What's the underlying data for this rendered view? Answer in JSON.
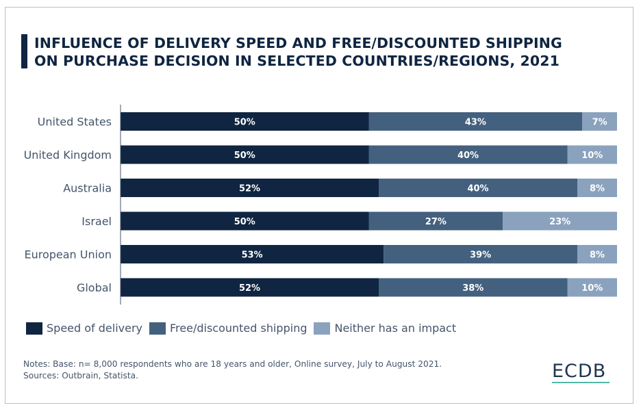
{
  "title_line1": "INFLUENCE OF DELIVERY SPEED AND FREE/DISCOUNTED SHIPPING",
  "title_line2": "ON PURCHASE DECISION IN SELECTED COUNTRIES/REGIONS, 2021",
  "chart_data": {
    "type": "bar",
    "orientation": "horizontal",
    "stacked": true,
    "title": "INFLUENCE OF DELIVERY SPEED AND FREE/DISCOUNTED SHIPPING ON PURCHASE DECISION IN SELECTED COUNTRIES/REGIONS, 2021",
    "categories": [
      "United States",
      "United Kingdom",
      "Australia",
      "Israel",
      "European Union",
      "Global"
    ],
    "series": [
      {
        "name": "Speed of delivery",
        "color": "#0f2541",
        "values": [
          50,
          50,
          52,
          50,
          53,
          52
        ]
      },
      {
        "name": "Free/discounted shipping",
        "color": "#44607f",
        "values": [
          43,
          40,
          40,
          27,
          39,
          38
        ]
      },
      {
        "name": "Neither has an impact",
        "color": "#8aa2bd",
        "values": [
          7,
          10,
          8,
          23,
          8,
          10
        ]
      }
    ],
    "value_suffix": "%",
    "xlim": [
      0,
      100
    ],
    "grid": false,
    "legend_position": "bottom-left"
  },
  "legend": [
    {
      "label": "Speed of delivery",
      "color": "#0f2541"
    },
    {
      "label": "Free/discounted shipping",
      "color": "#44607f"
    },
    {
      "label": "Neither has an impact",
      "color": "#8aa2bd"
    }
  ],
  "notes_line1": "Notes: Base: n= 8,000 respondents who are 18 years and older, Online survey, July to August 2021.",
  "notes_line2": "Sources: Outbrain, Statista.",
  "logo_text": "ECDB"
}
